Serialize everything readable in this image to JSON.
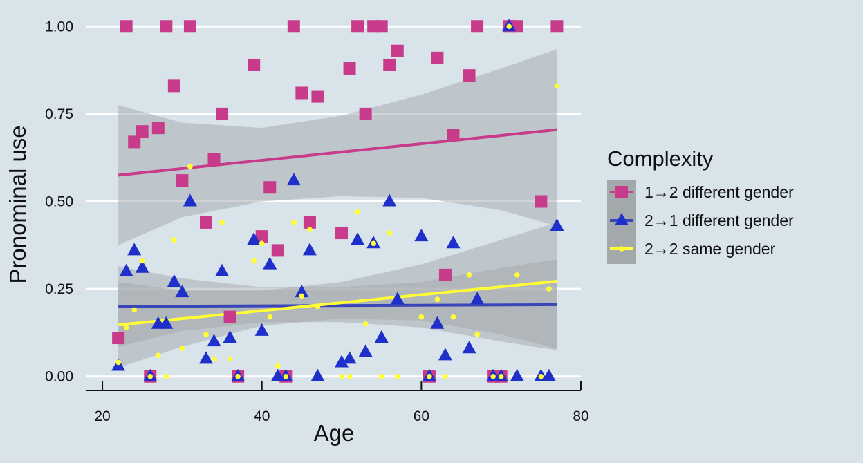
{
  "chart_data": {
    "type": "scatter",
    "xlabel": "Age",
    "ylabel": "Pronominal use",
    "xlim": [
      18,
      80
    ],
    "ylim": [
      -0.04,
      1.04
    ],
    "x_ticks": [
      "20",
      "40",
      "60",
      "80"
    ],
    "y_ticks": [
      "0.00",
      "0.25",
      "0.50",
      "0.75",
      "1.00"
    ],
    "grid": "horizontal-major",
    "legend": {
      "title": "Complexity",
      "placement": "right",
      "entries": [
        "1→2 different gender",
        "2→1 different gender",
        "2→2 same gender"
      ]
    },
    "colors": {
      "background": "#d9e3ea",
      "band": "#a3a8ab",
      "s1": "#c73b8a",
      "s2": "#1f2fc9",
      "s3": "#ffff33",
      "s2_trend": "#3a46b8"
    },
    "series": [
      {
        "name": "1→2 different gender",
        "marker": "square",
        "points": [
          [
            22,
            0.11
          ],
          [
            23,
            1.0
          ],
          [
            24,
            0.67
          ],
          [
            25,
            0.7
          ],
          [
            26,
            0.0
          ],
          [
            27,
            0.71
          ],
          [
            28,
            1.0
          ],
          [
            29,
            0.83
          ],
          [
            30,
            0.56
          ],
          [
            31,
            1.0
          ],
          [
            33,
            0.44
          ],
          [
            34,
            0.62
          ],
          [
            35,
            0.75
          ],
          [
            36,
            0.17
          ],
          [
            37,
            0.0
          ],
          [
            39,
            0.89
          ],
          [
            40,
            0.4
          ],
          [
            41,
            0.54
          ],
          [
            42,
            0.36
          ],
          [
            43,
            0.0
          ],
          [
            44,
            1.0
          ],
          [
            45,
            0.81
          ],
          [
            46,
            0.44
          ],
          [
            47,
            0.8
          ],
          [
            50,
            0.41
          ],
          [
            51,
            0.88
          ],
          [
            52,
            1.0
          ],
          [
            53,
            0.75
          ],
          [
            54,
            1.0
          ],
          [
            55,
            1.0
          ],
          [
            56,
            0.89
          ],
          [
            57,
            0.93
          ],
          [
            61,
            0.0
          ],
          [
            62,
            0.91
          ],
          [
            63,
            0.29
          ],
          [
            64,
            0.69
          ],
          [
            66,
            0.86
          ],
          [
            67,
            1.0
          ],
          [
            69,
            0.0
          ],
          [
            70,
            0.0
          ],
          [
            71,
            1.0
          ],
          [
            72,
            1.0
          ],
          [
            75,
            0.5
          ],
          [
            77,
            1.0
          ]
        ],
        "trend": {
          "x": [
            22,
            77
          ],
          "y": [
            0.575,
            0.705
          ]
        },
        "band": {
          "x": [
            22,
            30,
            40,
            50,
            60,
            70,
            77
          ],
          "lower": [
            0.375,
            0.455,
            0.5,
            0.515,
            0.51,
            0.475,
            0.43
          ],
          "upper": [
            0.775,
            0.725,
            0.71,
            0.745,
            0.805,
            0.88,
            0.935
          ]
        }
      },
      {
        "name": "2→1 different gender",
        "marker": "triangle",
        "points": [
          [
            22,
            0.03
          ],
          [
            23,
            0.3
          ],
          [
            24,
            0.36
          ],
          [
            25,
            0.31
          ],
          [
            26,
            0.0
          ],
          [
            27,
            0.15
          ],
          [
            28,
            0.15
          ],
          [
            29,
            0.27
          ],
          [
            30,
            0.24
          ],
          [
            31,
            0.5
          ],
          [
            33,
            0.05
          ],
          [
            34,
            0.1
          ],
          [
            35,
            0.3
          ],
          [
            36,
            0.11
          ],
          [
            37,
            0.0
          ],
          [
            39,
            0.39
          ],
          [
            40,
            0.13
          ],
          [
            41,
            0.32
          ],
          [
            42,
            0.0
          ],
          [
            43,
            0.0
          ],
          [
            44,
            0.56
          ],
          [
            45,
            0.24
          ],
          [
            46,
            0.36
          ],
          [
            47,
            0.0
          ],
          [
            50,
            0.04
          ],
          [
            51,
            0.05
          ],
          [
            52,
            0.39
          ],
          [
            53,
            0.07
          ],
          [
            54,
            0.38
          ],
          [
            55,
            0.11
          ],
          [
            56,
            0.5
          ],
          [
            57,
            0.22
          ],
          [
            60,
            0.4
          ],
          [
            61,
            0.0
          ],
          [
            62,
            0.15
          ],
          [
            63,
            0.06
          ],
          [
            64,
            0.38
          ],
          [
            66,
            0.08
          ],
          [
            67,
            0.22
          ],
          [
            69,
            0.0
          ],
          [
            70,
            0.0
          ],
          [
            71,
            1.0
          ],
          [
            72,
            0.0
          ],
          [
            75,
            0.0
          ],
          [
            76,
            0.0
          ],
          [
            77,
            0.43
          ]
        ],
        "trend": {
          "x": [
            22,
            77
          ],
          "y": [
            0.2,
            0.205
          ]
        },
        "band": {
          "x": [
            22,
            30,
            40,
            50,
            60,
            70,
            77
          ],
          "lower": [
            0.085,
            0.13,
            0.155,
            0.155,
            0.14,
            0.1,
            0.075
          ],
          "upper": [
            0.315,
            0.28,
            0.255,
            0.255,
            0.27,
            0.31,
            0.335
          ]
        }
      },
      {
        "name": "2→2 same gender",
        "marker": "circle",
        "points": [
          [
            22,
            0.04
          ],
          [
            23,
            0.14
          ],
          [
            24,
            0.19
          ],
          [
            25,
            0.33
          ],
          [
            26,
            0.0
          ],
          [
            27,
            0.06
          ],
          [
            28,
            0.0
          ],
          [
            29,
            0.39
          ],
          [
            30,
            0.08
          ],
          [
            31,
            0.6
          ],
          [
            33,
            0.12
          ],
          [
            34,
            0.05
          ],
          [
            35,
            0.44
          ],
          [
            36,
            0.05
          ],
          [
            37,
            0.0
          ],
          [
            39,
            0.33
          ],
          [
            40,
            0.38
          ],
          [
            41,
            0.17
          ],
          [
            42,
            0.03
          ],
          [
            43,
            0.0
          ],
          [
            44,
            0.44
          ],
          [
            45,
            0.23
          ],
          [
            46,
            0.42
          ],
          [
            47,
            0.2
          ],
          [
            50,
            0.0
          ],
          [
            51,
            0.0
          ],
          [
            52,
            0.47
          ],
          [
            53,
            0.15
          ],
          [
            54,
            0.38
          ],
          [
            55,
            0.0
          ],
          [
            56,
            0.41
          ],
          [
            57,
            0.0
          ],
          [
            60,
            0.17
          ],
          [
            61,
            0.0
          ],
          [
            62,
            0.22
          ],
          [
            63,
            0.0
          ],
          [
            64,
            0.17
          ],
          [
            66,
            0.29
          ],
          [
            67,
            0.12
          ],
          [
            69,
            0.0
          ],
          [
            70,
            0.0
          ],
          [
            71,
            1.0
          ],
          [
            72,
            0.29
          ],
          [
            75,
            0.0
          ],
          [
            76,
            0.25
          ],
          [
            77,
            0.83
          ]
        ],
        "trend": {
          "x": [
            22,
            77
          ],
          "y": [
            0.147,
            0.272
          ]
        },
        "band": {
          "x": [
            22,
            30,
            40,
            50,
            60,
            70,
            77
          ],
          "lower": [
            0.025,
            0.085,
            0.145,
            0.165,
            0.16,
            0.12,
            0.08
          ],
          "upper": [
            0.27,
            0.245,
            0.245,
            0.27,
            0.32,
            0.39,
            0.44
          ]
        }
      }
    ]
  }
}
